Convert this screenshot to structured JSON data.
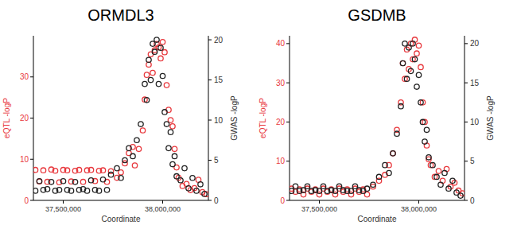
{
  "chart_data": [
    {
      "type": "scatter",
      "title": "ORMDL3",
      "x_label": "Coordinate",
      "y_label": "eQTL -logP",
      "y2_label": "GWAS -logP",
      "xlim": [
        37350000,
        38230000
      ],
      "xticks": [
        {
          "value": 37500000,
          "label": "37,500,000"
        },
        {
          "value": 38000000,
          "label": "38,000,000"
        }
      ],
      "ylim": [
        0,
        40
      ],
      "yticks": [
        0,
        10,
        20,
        30
      ],
      "y2lim": [
        0,
        20.5
      ],
      "y2ticks": [
        0,
        5,
        10,
        15,
        20
      ],
      "series": [
        {
          "color": "#e8383d",
          "marker": "circle",
          "axis": "y",
          "x": [
            37360000,
            37380000,
            37400000,
            37420000,
            37440000,
            37460000,
            37480000,
            37500000,
            37520000,
            37540000,
            37560000,
            37580000,
            37600000,
            37620000,
            37640000,
            37660000,
            37680000,
            37700000,
            37720000,
            37740000,
            37770000,
            37790000,
            37810000,
            37830000,
            37850000,
            37860000,
            37880000,
            37900000,
            37910000,
            37920000,
            37930000,
            37940000,
            37950000,
            37960000,
            37970000,
            37980000,
            37990000,
            38000000,
            38010000,
            38020000,
            38030000,
            38040000,
            38050000,
            38060000,
            38070000,
            38080000,
            38100000,
            38120000,
            38140000,
            38160000,
            38180000,
            38200000,
            38220000
          ],
          "values": [
            7.4,
            4.6,
            7.3,
            4.5,
            7.5,
            7.2,
            4.4,
            7.4,
            7.3,
            4.6,
            7.2,
            7.4,
            4.5,
            7.3,
            7.4,
            4.7,
            7.2,
            7.3,
            4.5,
            7.1,
            5.5,
            6.8,
            9.0,
            11.5,
            13.0,
            8.5,
            12.5,
            17.0,
            24.5,
            30.5,
            33.0,
            35.5,
            31.0,
            36.5,
            38.0,
            37.2,
            34.5,
            38.5,
            36.0,
            28.0,
            22.0,
            19.5,
            18.0,
            12.5,
            8.0,
            5.5,
            3.5,
            4.0,
            2.5,
            3.0,
            5.0,
            2.0,
            1.5
          ]
        },
        {
          "color": "#222222",
          "marker": "circle",
          "axis": "y2",
          "x": [
            37360000,
            37380000,
            37400000,
            37420000,
            37440000,
            37460000,
            37480000,
            37500000,
            37520000,
            37540000,
            37560000,
            37580000,
            37600000,
            37620000,
            37640000,
            37660000,
            37680000,
            37700000,
            37720000,
            37740000,
            37770000,
            37790000,
            37810000,
            37830000,
            37850000,
            37870000,
            37890000,
            37910000,
            37920000,
            37930000,
            37940000,
            37950000,
            37960000,
            37970000,
            37980000,
            37990000,
            38000000,
            38010000,
            38020000,
            38030000,
            38040000,
            38050000,
            38060000,
            38070000,
            38090000,
            38110000,
            38130000,
            38150000,
            38170000,
            38190000,
            38210000
          ],
          "values": [
            1.2,
            2.4,
            1.3,
            1.4,
            2.3,
            1.2,
            1.3,
            2.4,
            1.3,
            1.2,
            2.3,
            1.3,
            1.4,
            1.2,
            2.5,
            1.3,
            1.2,
            2.6,
            1.3,
            3.2,
            4.0,
            2.8,
            5.0,
            6.5,
            5.5,
            7.5,
            9.5,
            14.5,
            12.5,
            17.5,
            15.0,
            19.5,
            18.5,
            20.0,
            14.5,
            19.0,
            15.5,
            11.0,
            9.5,
            6.5,
            8.5,
            4.5,
            5.5,
            3.0,
            2.5,
            4.0,
            1.5,
            2.8,
            1.2,
            2.0,
            0.8
          ]
        }
      ]
    },
    {
      "type": "scatter",
      "title": "GSDMB",
      "x_label": "Coordinate",
      "y_label": "eQTL -logP",
      "y2_label": "GWAS -logP",
      "xlim": [
        37350000,
        38230000
      ],
      "xticks": [
        {
          "value": 37500000,
          "label": "37,500,000"
        },
        {
          "value": 38000000,
          "label": "38,000,000"
        }
      ],
      "ylim": [
        0,
        42
      ],
      "yticks": [
        0,
        10,
        20,
        30,
        40
      ],
      "y2lim": [
        0,
        21
      ],
      "y2ticks": [
        0,
        5,
        10,
        15,
        20
      ],
      "series": [
        {
          "color": "#e8383d",
          "marker": "circle",
          "axis": "y",
          "x": [
            37360000,
            37380000,
            37400000,
            37420000,
            37440000,
            37460000,
            37480000,
            37500000,
            37520000,
            37540000,
            37560000,
            37580000,
            37600000,
            37620000,
            37640000,
            37660000,
            37680000,
            37700000,
            37720000,
            37740000,
            37770000,
            37800000,
            37830000,
            37850000,
            37870000,
            37890000,
            37910000,
            37920000,
            37930000,
            37940000,
            37950000,
            37960000,
            37970000,
            37980000,
            37990000,
            38000000,
            38010000,
            38020000,
            38030000,
            38040000,
            38050000,
            38060000,
            38080000,
            38100000,
            38120000,
            38140000,
            38160000,
            38180000,
            38200000,
            38220000
          ],
          "values": [
            3.0,
            2.2,
            2.8,
            1.5,
            3.0,
            2.2,
            2.8,
            1.5,
            3.0,
            2.2,
            2.8,
            1.5,
            3.0,
            2.2,
            2.8,
            1.5,
            3.0,
            2.2,
            2.8,
            1.5,
            3.5,
            5.0,
            6.5,
            9.0,
            12.0,
            18.0,
            25.0,
            35.0,
            31.0,
            38.5,
            33.5,
            40.0,
            36.0,
            41.0,
            37.5,
            39.5,
            34.0,
            25.0,
            20.0,
            14.0,
            10.5,
            9.0,
            6.0,
            7.5,
            5.0,
            8.0,
            3.5,
            4.5,
            2.5,
            1.8
          ]
        },
        {
          "color": "#222222",
          "marker": "circle",
          "axis": "y2",
          "x": [
            37360000,
            37380000,
            37400000,
            37420000,
            37440000,
            37460000,
            37480000,
            37500000,
            37520000,
            37540000,
            37560000,
            37580000,
            37600000,
            37620000,
            37640000,
            37660000,
            37680000,
            37700000,
            37720000,
            37740000,
            37770000,
            37800000,
            37830000,
            37850000,
            37870000,
            37890000,
            37910000,
            37920000,
            37930000,
            37940000,
            37950000,
            37960000,
            37970000,
            37980000,
            37990000,
            38000000,
            38010000,
            38020000,
            38030000,
            38040000,
            38050000,
            38070000,
            38090000,
            38110000,
            38130000,
            38150000,
            38170000,
            38190000,
            38210000
          ],
          "values": [
            1.2,
            1.8,
            1.2,
            1.3,
            1.8,
            1.2,
            1.3,
            1.2,
            1.8,
            1.2,
            1.3,
            1.2,
            1.8,
            1.3,
            1.2,
            1.2,
            1.8,
            1.3,
            1.2,
            1.5,
            2.0,
            3.0,
            4.5,
            3.5,
            6.0,
            8.5,
            12.0,
            17.5,
            20.0,
            15.5,
            19.5,
            16.5,
            20.0,
            18.0,
            14.5,
            16.0,
            12.5,
            10.0,
            7.5,
            9.0,
            5.5,
            4.5,
            3.0,
            2.0,
            3.5,
            1.5,
            2.5,
            1.0,
            0.6
          ]
        }
      ]
    }
  ]
}
